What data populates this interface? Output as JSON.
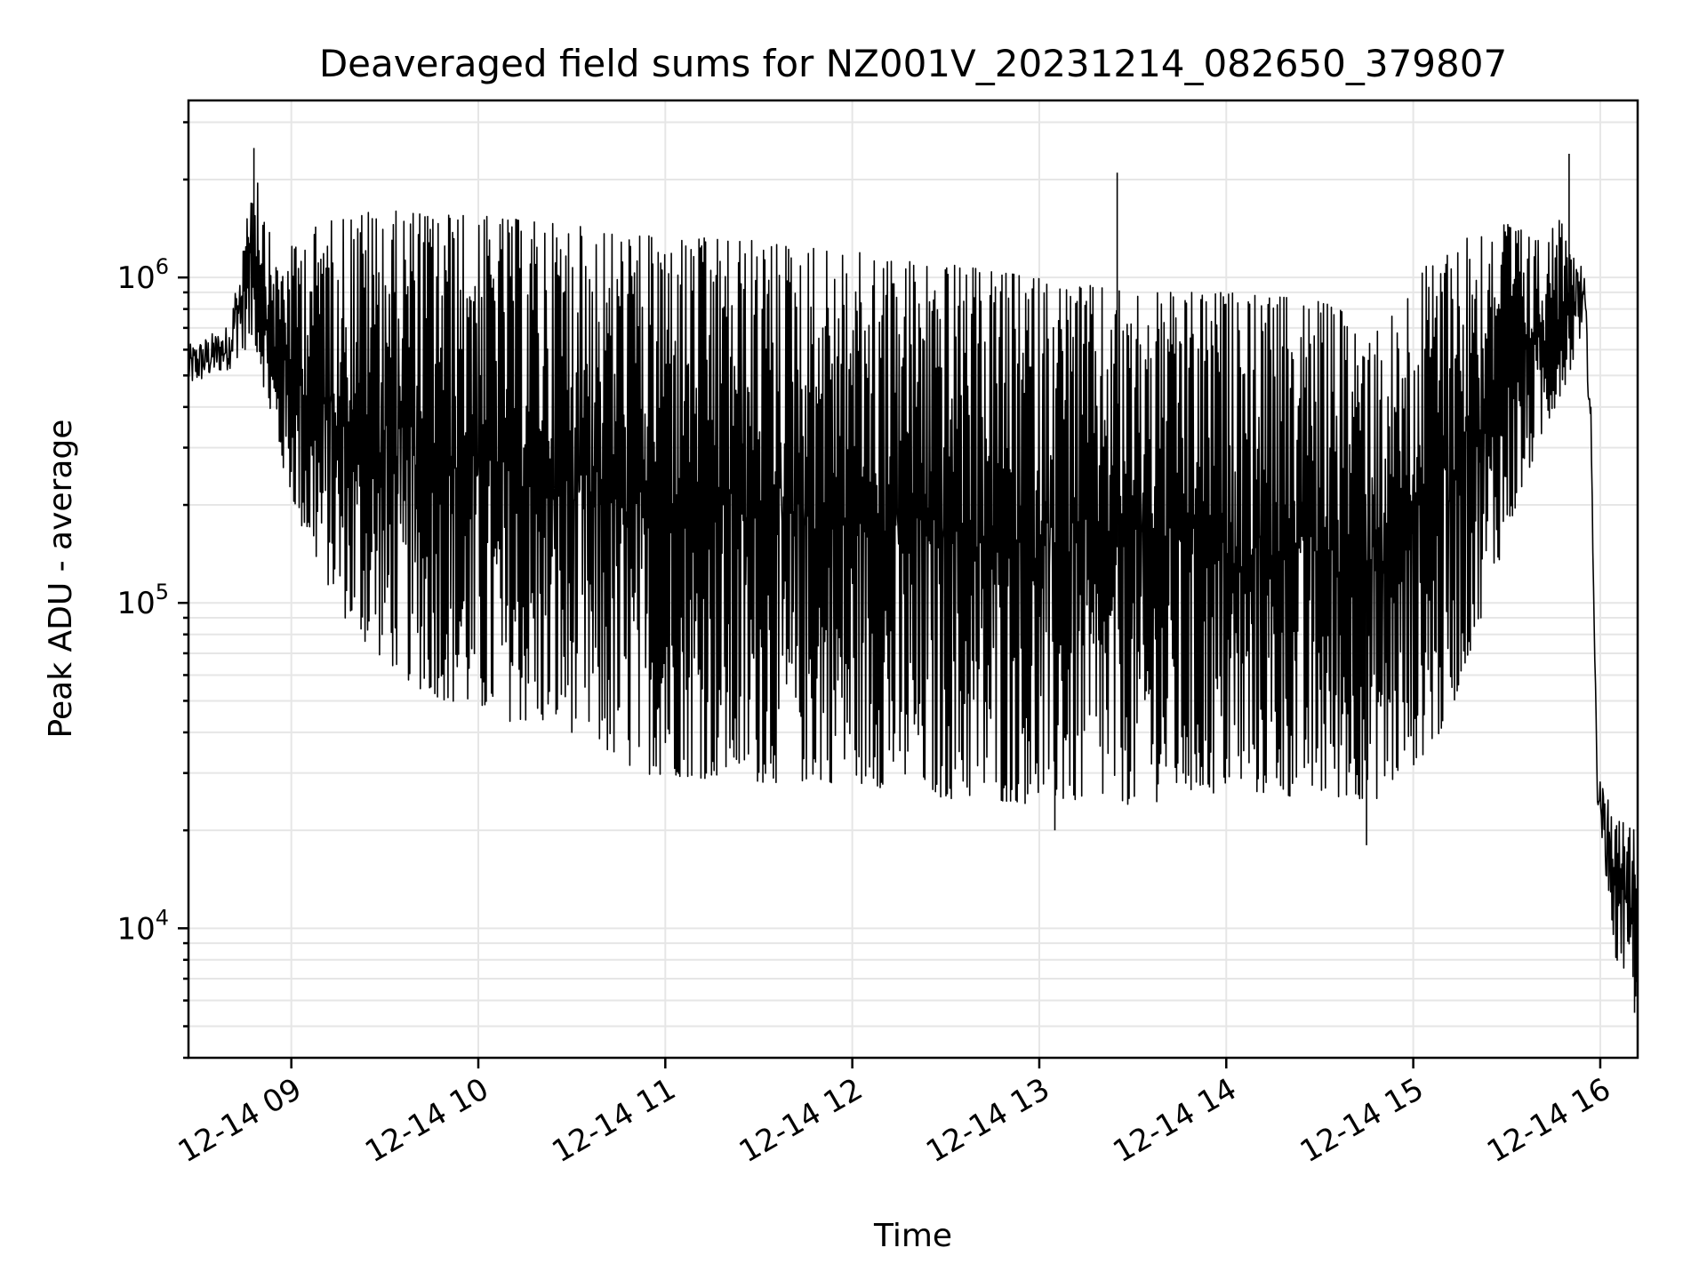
{
  "chart_data": {
    "type": "line",
    "title": "Deaveraged field sums for NZ001V_20231214_082650_379807",
    "xlabel": "Time",
    "ylabel": "Peak ADU - average",
    "yscale": "log",
    "xlim": [
      "2023-12-14 08:27",
      "2023-12-14 16:12"
    ],
    "ylim": [
      4000,
      3500000
    ],
    "x_ticks": [
      {
        "t": "2023-12-14 09:00",
        "label": "12-14 09"
      },
      {
        "t": "2023-12-14 10:00",
        "label": "12-14 10"
      },
      {
        "t": "2023-12-14 11:00",
        "label": "12-14 11"
      },
      {
        "t": "2023-12-14 12:00",
        "label": "12-14 12"
      },
      {
        "t": "2023-12-14 13:00",
        "label": "12-14 13"
      },
      {
        "t": "2023-12-14 14:00",
        "label": "12-14 14"
      },
      {
        "t": "2023-12-14 15:00",
        "label": "12-14 15"
      },
      {
        "t": "2023-12-14 16:00",
        "label": "12-14 16"
      }
    ],
    "y_ticks": [
      {
        "value": 10000,
        "base": "10",
        "exp": "4"
      },
      {
        "value": 100000,
        "base": "10",
        "exp": "5"
      },
      {
        "value": 1000000,
        "base": "10",
        "exp": "6"
      }
    ],
    "grid": true,
    "line_color": "#000000",
    "envelope": [
      {
        "t": "2023-12-14 08:27",
        "low": 450000,
        "high": 620000
      },
      {
        "t": "2023-12-14 08:40",
        "low": 520000,
        "high": 720000
      },
      {
        "t": "2023-12-14 08:48",
        "low": 650000,
        "high": 2400000
      },
      {
        "t": "2023-12-14 08:55",
        "low": 300000,
        "high": 1100000
      },
      {
        "t": "2023-12-14 09:05",
        "low": 150000,
        "high": 1400000
      },
      {
        "t": "2023-12-14 09:20",
        "low": 80000,
        "high": 1600000
      },
      {
        "t": "2023-12-14 09:40",
        "low": 55000,
        "high": 1600000
      },
      {
        "t": "2023-12-14 10:00",
        "low": 45000,
        "high": 1550000
      },
      {
        "t": "2023-12-14 10:30",
        "low": 40000,
        "high": 1450000
      },
      {
        "t": "2023-12-14 10:50",
        "low": 30000,
        "high": 1350000
      },
      {
        "t": "2023-12-14 11:30",
        "low": 28000,
        "high": 1300000
      },
      {
        "t": "2023-12-14 12:00",
        "low": 28000,
        "high": 1200000
      },
      {
        "t": "2023-12-14 12:30",
        "low": 25000,
        "high": 1100000
      },
      {
        "t": "2023-12-14 13:00",
        "low": 24000,
        "high": 1000000
      },
      {
        "t": "2023-12-14 13:30",
        "low": 24000,
        "high": 900000
      },
      {
        "t": "2023-12-14 14:00",
        "low": 26000,
        "high": 900000
      },
      {
        "t": "2023-12-14 14:30",
        "low": 25000,
        "high": 850000
      },
      {
        "t": "2023-12-14 14:50",
        "low": 25000,
        "high": 700000
      },
      {
        "t": "2023-12-14 15:10",
        "low": 40000,
        "high": 1300000
      },
      {
        "t": "2023-12-14 15:30",
        "low": 160000,
        "high": 1500000
      },
      {
        "t": "2023-12-14 15:40",
        "low": 300000,
        "high": 1300000
      },
      {
        "t": "2023-12-14 15:50",
        "low": 500000,
        "high": 1600000
      },
      {
        "t": "2023-12-14 15:55",
        "low": 700000,
        "high": 1000000
      },
      {
        "t": "2023-12-14 15:57",
        "low": 300000,
        "high": 400000
      },
      {
        "t": "2023-12-14 15:59",
        "low": 25000,
        "high": 30000
      },
      {
        "t": "2023-12-14 16:05",
        "low": 8000,
        "high": 22000
      },
      {
        "t": "2023-12-14 16:12",
        "low": 6000,
        "high": 20000
      }
    ],
    "spikes": [
      {
        "t": "2023-12-14 08:48",
        "value": 2500000
      },
      {
        "t": "2023-12-14 13:25",
        "value": 2100000
      },
      {
        "t": "2023-12-14 15:50",
        "value": 2400000
      },
      {
        "t": "2023-12-14 14:45",
        "value": 18000
      },
      {
        "t": "2023-12-14 13:05",
        "value": 20000
      },
      {
        "t": "2023-12-14 16:11",
        "value": 5500
      }
    ]
  }
}
